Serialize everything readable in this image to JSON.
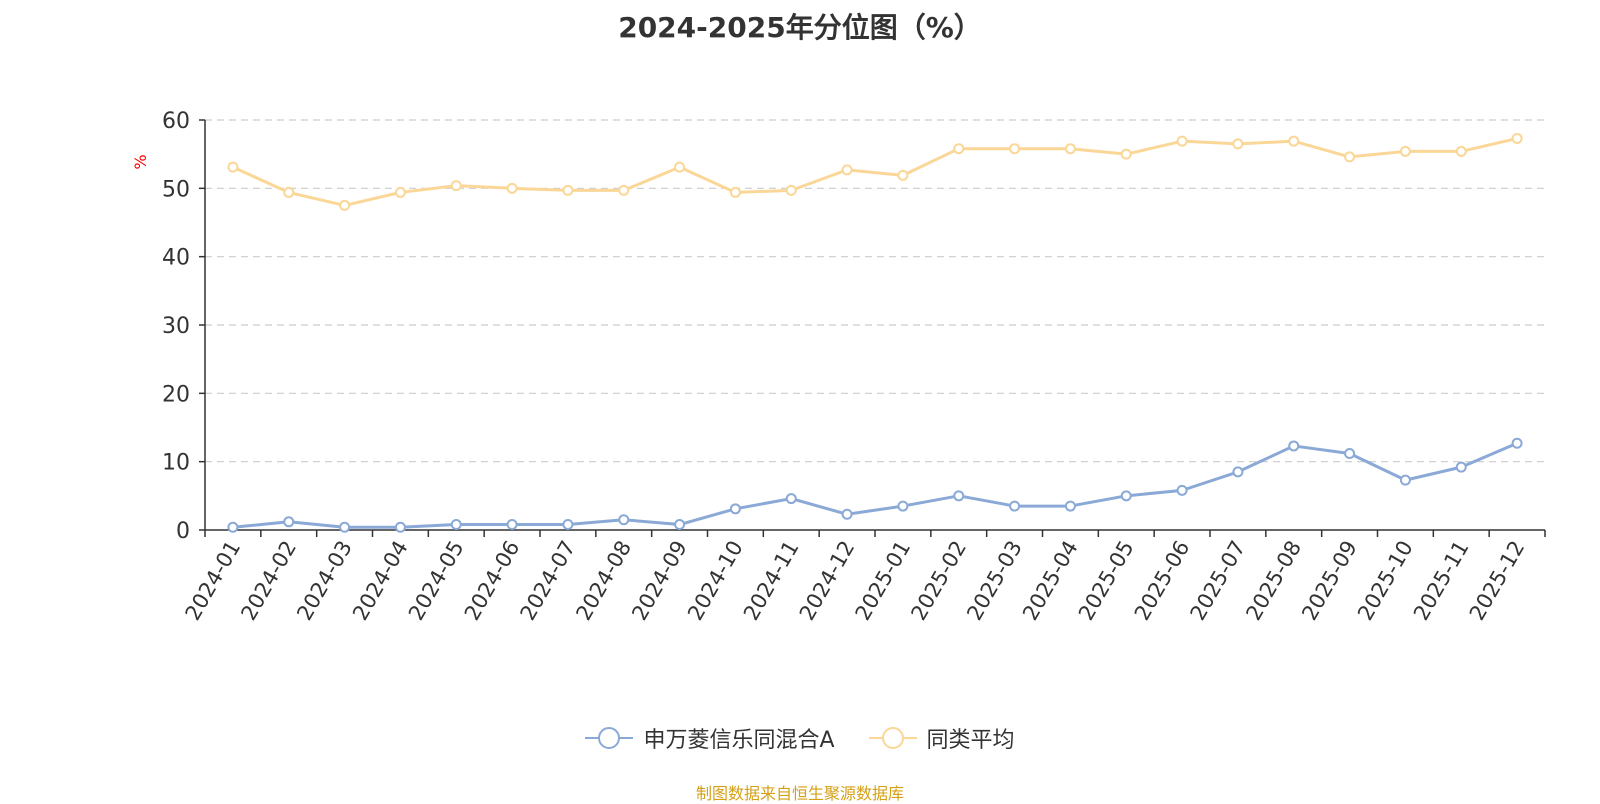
{
  "chart_data": {
    "type": "line",
    "title": "2024-2025年分位图（%）",
    "ylabel": "%",
    "xlabel": "",
    "ylim": [
      0,
      60
    ],
    "yticks": [
      0,
      10,
      20,
      30,
      40,
      50,
      60
    ],
    "grid": true,
    "legend_position": "bottom",
    "categories": [
      "2024-01",
      "2024-02",
      "2024-03",
      "2024-04",
      "2024-05",
      "2024-06",
      "2024-07",
      "2024-08",
      "2024-09",
      "2024-10",
      "2024-11",
      "2024-12",
      "2025-01",
      "2025-02",
      "2025-03",
      "2025-04",
      "2025-05",
      "2025-06",
      "2025-07",
      "2025-08",
      "2025-09",
      "2025-10",
      "2025-11",
      "2025-12"
    ],
    "series": [
      {
        "name": "申万菱信乐同混合A",
        "color": "#8aa9d6",
        "values": [
          0.4,
          1.2,
          0.4,
          0.4,
          0.8,
          0.8,
          0.8,
          1.5,
          0.8,
          3.1,
          4.6,
          2.3,
          3.5,
          5.0,
          3.5,
          3.5,
          5.0,
          5.8,
          8.5,
          12.3,
          11.2,
          7.3,
          9.2,
          12.7
        ]
      },
      {
        "name": "同类平均",
        "color": "#fad797",
        "values": [
          53.1,
          49.4,
          47.5,
          49.4,
          50.4,
          50.0,
          49.7,
          49.7,
          53.1,
          49.4,
          49.7,
          52.7,
          51.9,
          55.8,
          55.8,
          55.8,
          55.0,
          56.9,
          56.5,
          56.9,
          54.6,
          55.4,
          55.4,
          57.3
        ]
      }
    ]
  },
  "source_note": "制图数据来自恒生聚源数据库"
}
